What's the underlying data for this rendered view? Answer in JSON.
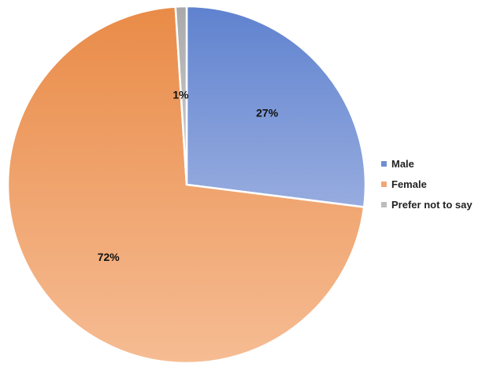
{
  "chart_data": {
    "type": "pie",
    "title": "",
    "slices": [
      {
        "name": "Male",
        "value": 27,
        "label": "27%",
        "color": "#7f9bd6"
      },
      {
        "name": "Female",
        "value": 72,
        "label": "72%",
        "color": "#f0a877"
      },
      {
        "name": "Prefer not to say",
        "value": 1,
        "label": "1%",
        "color": "#bdbdbd"
      }
    ],
    "legend_position": "right",
    "start_angle": "top, clockwise"
  },
  "legend": {
    "items": [
      {
        "label": "Male",
        "color": "#7f9bd6"
      },
      {
        "label": "Female",
        "color": "#f0a877"
      },
      {
        "label": "Prefer not to say",
        "color": "#bdbdbd"
      }
    ]
  }
}
